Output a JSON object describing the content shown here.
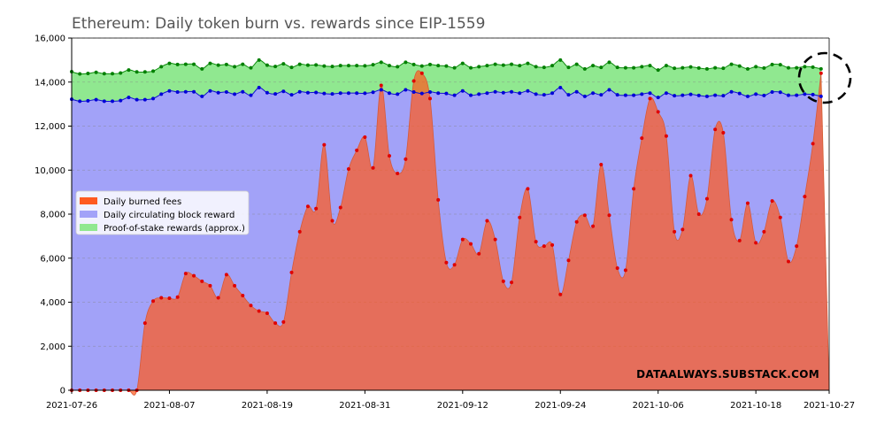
{
  "chart_data": {
    "type": "area",
    "title": "Ethereum: Daily token burn vs. rewards since EIP-1559",
    "xlabel": "",
    "ylabel": "",
    "x_start": "2021-07-26",
    "x_end": "2021-10-27",
    "ylim": [
      0,
      16000
    ],
    "yticks": [
      0,
      2000,
      4000,
      6000,
      8000,
      10000,
      12000,
      14000,
      16000
    ],
    "ytick_labels": [
      "0",
      "2,000",
      "4,000",
      "6,000",
      "8,000",
      "10,000",
      "12,000",
      "14,000",
      "16,000"
    ],
    "xticks": [
      "2021-07-26",
      "2021-08-07",
      "2021-08-19",
      "2021-08-31",
      "2021-09-12",
      "2021-09-24",
      "2021-10-06",
      "2021-10-18",
      "2021-10-27"
    ],
    "grid": "horizontal-dashed",
    "legend_position": "center-left",
    "watermark": "DATAALWAYS.SUBSTACK.COM",
    "series": [
      {
        "name": "Daily burned fees",
        "color": "#ff5a1f",
        "marker_color": "#e00000",
        "values": [
          0,
          0,
          0,
          0,
          0,
          0,
          0,
          0,
          0,
          3050,
          4050,
          4200,
          4180,
          4230,
          5300,
          5200,
          4950,
          4750,
          4200,
          5250,
          4750,
          4300,
          3850,
          3600,
          3500,
          3050,
          3100,
          5350,
          7200,
          8350,
          8250,
          11150,
          7700,
          8300,
          10050,
          10900,
          11500,
          10100,
          13850,
          10650,
          9850,
          10500,
          14050,
          14400,
          13250,
          8650,
          5800,
          5700,
          6850,
          6650,
          6200,
          7700,
          6850,
          4950,
          4900,
          7850,
          9150,
          6750,
          6550,
          6600,
          4350,
          5900,
          7650,
          7950,
          7450,
          10250,
          7950,
          5550,
          5450,
          9150,
          11450,
          13250,
          12650,
          11550,
          7200,
          7300,
          9750,
          8000,
          8700,
          11850,
          11700,
          7750,
          6800,
          8500,
          6700,
          7200,
          8600,
          7850,
          5850,
          6550,
          8800,
          11200,
          14400
        ]
      },
      {
        "name": "Daily circulating block reward",
        "color": "#a2a2f8",
        "marker_color": "#0000d8",
        "values": [
          13220,
          13130,
          13150,
          13200,
          13130,
          13130,
          13160,
          13300,
          13200,
          13200,
          13250,
          13450,
          13600,
          13550,
          13560,
          13560,
          13350,
          13600,
          13520,
          13550,
          13450,
          13560,
          13400,
          13750,
          13520,
          13460,
          13580,
          13420,
          13560,
          13520,
          13530,
          13480,
          13460,
          13500,
          13500,
          13500,
          13490,
          13540,
          13650,
          13500,
          13450,
          13650,
          13550,
          13480,
          13550,
          13500,
          13480,
          13400,
          13600,
          13400,
          13450,
          13500,
          13560,
          13520,
          13560,
          13500,
          13600,
          13450,
          13420,
          13500,
          13750,
          13420,
          13560,
          13350,
          13500,
          13420,
          13650,
          13420,
          13400,
          13400,
          13450,
          13500,
          13300,
          13500,
          13380,
          13400,
          13440,
          13390,
          13350,
          13400,
          13380,
          13560,
          13480,
          13350,
          13450,
          13390,
          13550,
          13540,
          13400,
          13400,
          13450,
          13430,
          13350
        ]
      },
      {
        "name": "Proof-of-stake rewards (approx.)",
        "color": "#90e890",
        "marker_color": "#008000",
        "values": [
          14470,
          14370,
          14390,
          14440,
          14380,
          14380,
          14410,
          14550,
          14460,
          14460,
          14500,
          14700,
          14850,
          14800,
          14810,
          14810,
          14600,
          14850,
          14770,
          14800,
          14700,
          14810,
          14650,
          15000,
          14770,
          14710,
          14830,
          14670,
          14810,
          14770,
          14780,
          14730,
          14710,
          14750,
          14750,
          14750,
          14740,
          14790,
          14900,
          14750,
          14700,
          14900,
          14800,
          14730,
          14800,
          14750,
          14730,
          14650,
          14850,
          14650,
          14700,
          14750,
          14810,
          14770,
          14810,
          14750,
          14850,
          14700,
          14670,
          14750,
          15000,
          14670,
          14810,
          14600,
          14750,
          14670,
          14900,
          14670,
          14650,
          14650,
          14700,
          14750,
          14550,
          14750,
          14630,
          14650,
          14690,
          14640,
          14600,
          14650,
          14630,
          14810,
          14730,
          14600,
          14700,
          14640,
          14800,
          14790,
          14650,
          14650,
          14700,
          14680,
          14600
        ]
      }
    ],
    "annotation": "dashed circle highlighting 2021-10-27 where daily burned fees approach total rewards"
  }
}
